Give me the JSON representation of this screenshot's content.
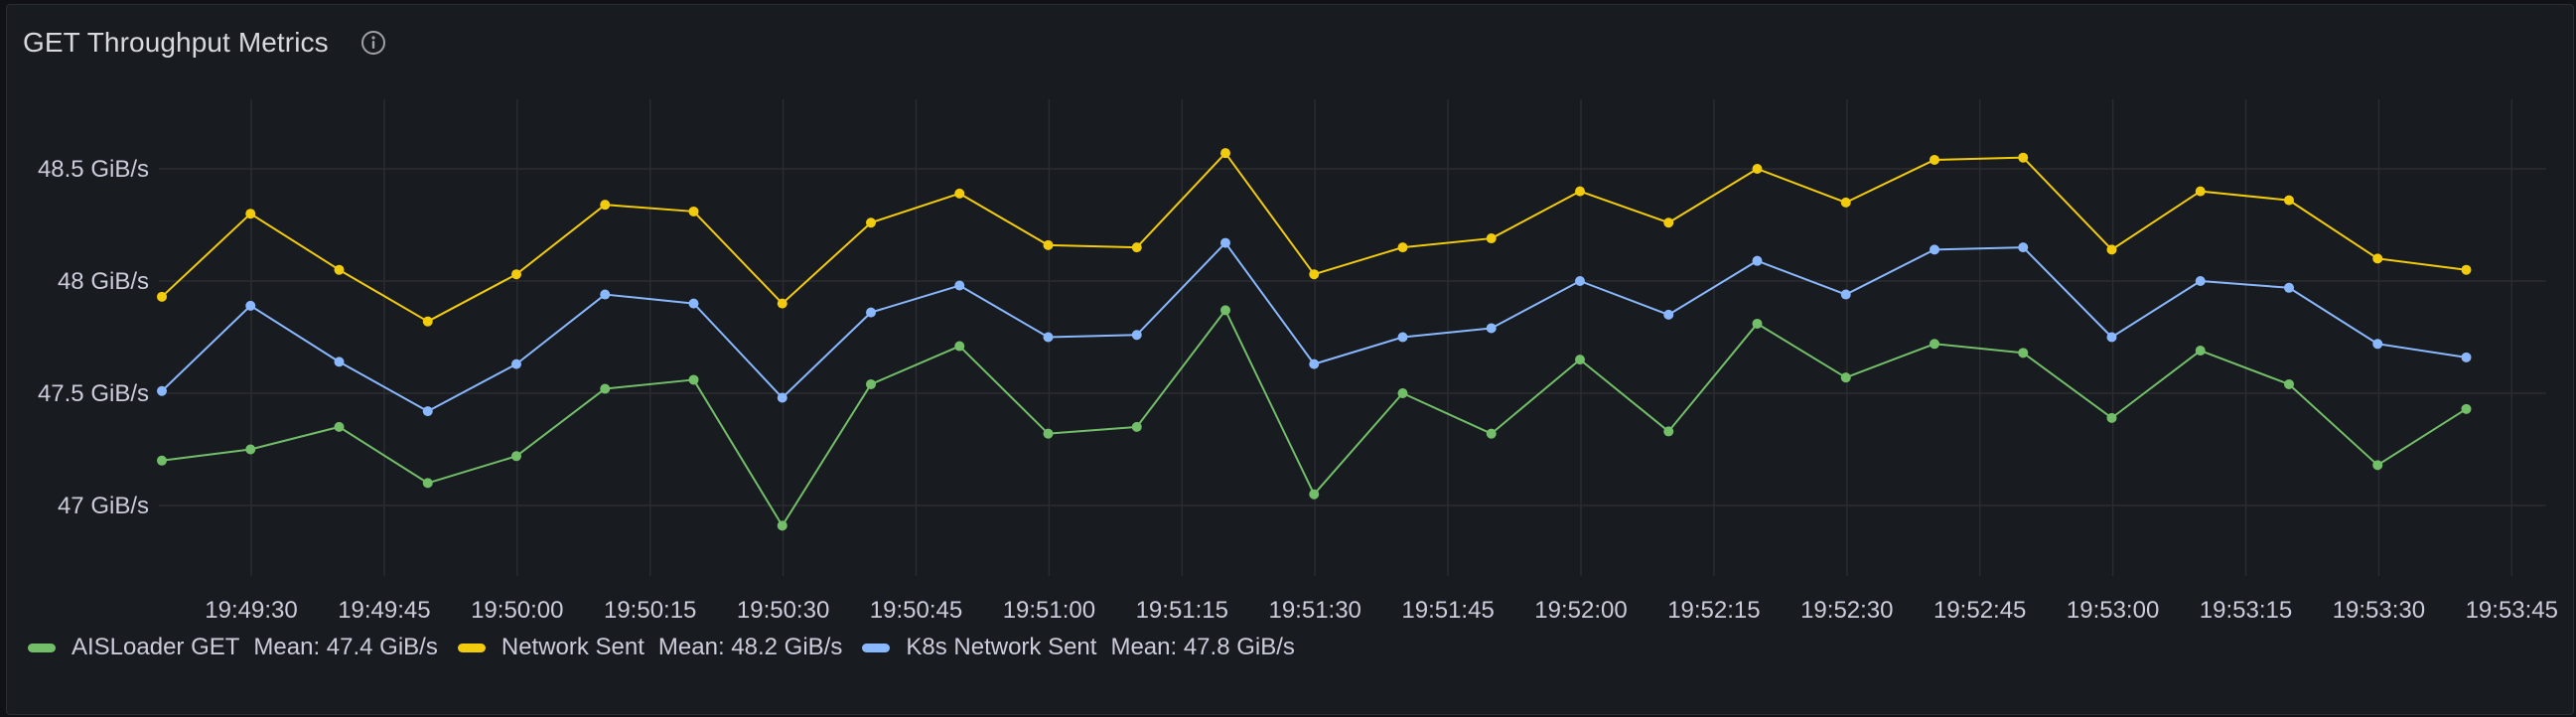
{
  "panel": {
    "title": "GET Throughput Metrics",
    "info_icon": "info-circle-icon"
  },
  "colors": {
    "background": "#181b1f",
    "grid": "#2a2c31",
    "text": "#ccccdc",
    "green": "#73bf69",
    "yellow": "#f2cc0c",
    "blue": "#8ab8ff"
  },
  "legend": [
    {
      "name": "AISLoader GET",
      "mean": "Mean: 47.4 GiB/s",
      "color": "#73bf69"
    },
    {
      "name": "Network Sent",
      "mean": "Mean: 48.2 GiB/s",
      "color": "#f2cc0c"
    },
    {
      "name": "K8s Network Sent",
      "mean": "Mean: 47.8 GiB/s",
      "color": "#8ab8ff"
    }
  ],
  "chart_data": {
    "type": "line",
    "title": "GET Throughput Metrics",
    "xlabel": "",
    "ylabel": "",
    "unit": "GiB/s",
    "ylim": [
      46.7,
      48.75
    ],
    "yticks": [
      "48.5 GiB/s",
      "48 GiB/s",
      "47.5 GiB/s",
      "47 GiB/s"
    ],
    "ytick_values": [
      48.5,
      48.0,
      47.5,
      47.0
    ],
    "xticks": [
      "19:49:30",
      "19:49:45",
      "19:50:00",
      "19:50:15",
      "19:50:30",
      "19:50:45",
      "19:51:00",
      "19:51:15",
      "19:51:30",
      "19:51:45",
      "19:52:00",
      "19:52:15",
      "19:52:30",
      "19:52:45",
      "19:53:00",
      "19:53:15",
      "19:53:30",
      "19:53:45"
    ],
    "grid": true,
    "legend_position": "bottom",
    "x": [
      "19:49:20",
      "19:49:30",
      "19:49:40",
      "19:49:50",
      "19:50:00",
      "19:50:10",
      "19:50:20",
      "19:50:30",
      "19:50:40",
      "19:50:50",
      "19:51:00",
      "19:51:10",
      "19:51:20",
      "19:51:30",
      "19:51:40",
      "19:51:50",
      "19:52:00",
      "19:52:10",
      "19:52:20",
      "19:52:30",
      "19:52:40",
      "19:52:50",
      "19:53:00",
      "19:53:10",
      "19:53:20",
      "19:53:30",
      "19:53:40"
    ],
    "series": [
      {
        "name": "AISLoader GET",
        "mean": 47.4,
        "color": "#73bf69",
        "values": [
          47.2,
          47.25,
          47.35,
          47.1,
          47.22,
          47.52,
          47.56,
          46.91,
          47.54,
          47.71,
          47.32,
          47.35,
          47.87,
          47.05,
          47.5,
          47.32,
          47.65,
          47.33,
          47.81,
          47.57,
          47.72,
          47.68,
          47.39,
          47.69,
          47.54,
          47.18,
          47.43
        ]
      },
      {
        "name": "Network Sent",
        "mean": 48.2,
        "color": "#f2cc0c",
        "values": [
          47.93,
          48.3,
          48.05,
          47.82,
          48.03,
          48.34,
          48.31,
          47.9,
          48.26,
          48.39,
          48.16,
          48.15,
          48.57,
          48.03,
          48.15,
          48.19,
          48.4,
          48.26,
          48.5,
          48.35,
          48.54,
          48.55,
          48.14,
          48.4,
          48.36,
          48.1,
          48.05
        ]
      },
      {
        "name": "K8s Network Sent",
        "mean": 47.8,
        "color": "#8ab8ff",
        "values": [
          47.51,
          47.89,
          47.64,
          47.42,
          47.63,
          47.94,
          47.9,
          47.48,
          47.86,
          47.98,
          47.75,
          47.76,
          48.17,
          47.63,
          47.75,
          47.79,
          48.0,
          47.85,
          48.09,
          47.94,
          48.14,
          48.15,
          47.75,
          48.0,
          47.97,
          47.72,
          47.66
        ]
      }
    ]
  }
}
